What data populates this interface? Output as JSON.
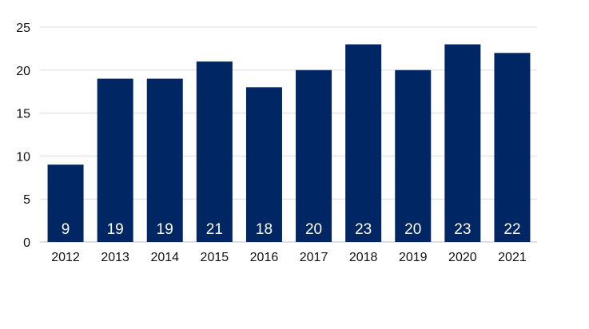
{
  "chart_data": {
    "type": "bar",
    "categories": [
      "2012",
      "2013",
      "2014",
      "2015",
      "2016",
      "2017",
      "2018",
      "2019",
      "2020",
      "2021"
    ],
    "values": [
      9,
      19,
      19,
      21,
      18,
      20,
      23,
      20,
      23,
      22
    ],
    "title": "",
    "xlabel": "",
    "ylabel": "",
    "ylim": [
      0,
      25
    ],
    "yticks": [
      0,
      5,
      10,
      15,
      20,
      25
    ],
    "grid": true,
    "legend": "none",
    "bar_color": "#002663",
    "data_label_color": "#ffffff",
    "data_labels_position": "inside-base"
  }
}
